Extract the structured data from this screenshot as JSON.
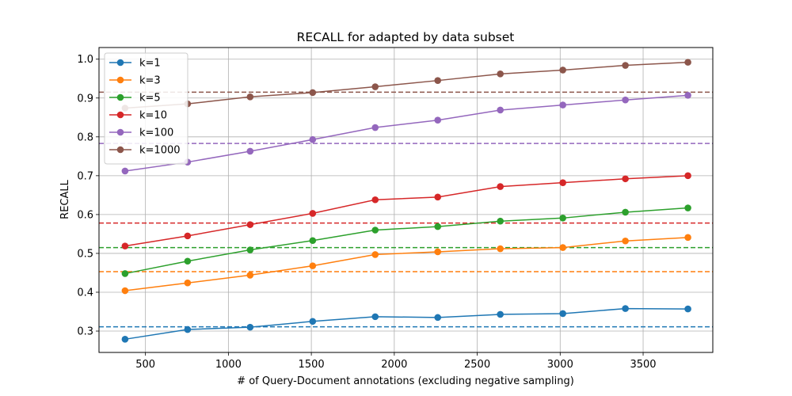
{
  "chart_data": {
    "type": "line",
    "title": "RECALL for adapted by data subset",
    "xlabel": "# of Query-Document annotations (excluding negative sampling)",
    "ylabel": "RECALL",
    "xlim": [
      220,
      3920
    ],
    "ylim": [
      0.245,
      1.03
    ],
    "xticks": [
      500,
      1000,
      1500,
      2000,
      2500,
      3000,
      3500
    ],
    "yticks": [
      0.3,
      0.4,
      0.5,
      0.6,
      0.7,
      0.8,
      0.9,
      1.0
    ],
    "grid": true,
    "legend_position": "top-left",
    "x": [
      377,
      754,
      1131,
      1508,
      1885,
      2262,
      2639,
      3016,
      3393,
      3770
    ],
    "series": [
      {
        "name": "k=1",
        "color": "#1f77b4",
        "baseline": 0.311,
        "values": [
          0.279,
          0.304,
          0.31,
          0.325,
          0.337,
          0.335,
          0.343,
          0.345,
          0.358,
          0.357
        ]
      },
      {
        "name": "k=3",
        "color": "#ff7f0e",
        "baseline": 0.453,
        "values": [
          0.404,
          0.424,
          0.444,
          0.468,
          0.497,
          0.504,
          0.512,
          0.515,
          0.532,
          0.541
        ]
      },
      {
        "name": "k=5",
        "color": "#2ca02c",
        "baseline": 0.515,
        "values": [
          0.448,
          0.48,
          0.509,
          0.533,
          0.56,
          0.569,
          0.583,
          0.591,
          0.606,
          0.617
        ]
      },
      {
        "name": "k=10",
        "color": "#d62728",
        "baseline": 0.578,
        "values": [
          0.519,
          0.545,
          0.574,
          0.603,
          0.638,
          0.645,
          0.672,
          0.682,
          0.692,
          0.7
        ]
      },
      {
        "name": "k=100",
        "color": "#9467bd",
        "baseline": 0.783,
        "values": [
          0.712,
          0.735,
          0.763,
          0.793,
          0.824,
          0.843,
          0.869,
          0.882,
          0.895,
          0.907
        ]
      },
      {
        "name": "k=1000",
        "color": "#8c564b",
        "baseline": 0.915,
        "values": [
          0.874,
          0.885,
          0.903,
          0.914,
          0.929,
          0.945,
          0.962,
          0.972,
          0.984,
          0.992
        ]
      }
    ]
  }
}
